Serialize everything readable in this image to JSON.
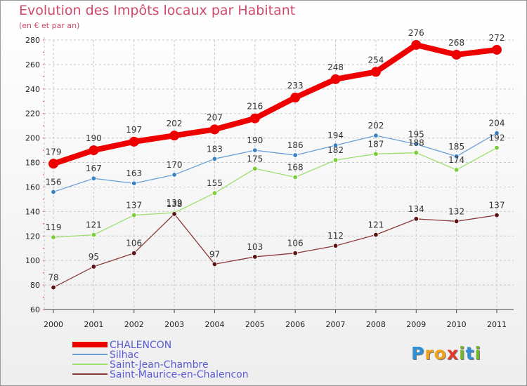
{
  "chart_data": {
    "type": "line",
    "title": "Evolution des Impôts locaux par Habitant",
    "subtitle": "(en € et par an)",
    "xlabel": "",
    "ylabel": "",
    "ylim": [
      60,
      280
    ],
    "y_ticks": [
      60,
      80,
      100,
      120,
      140,
      160,
      180,
      200,
      220,
      240,
      260,
      280
    ],
    "categories": [
      "2000",
      "2001",
      "2002",
      "2003",
      "2004",
      "2005",
      "2006",
      "2007",
      "2008",
      "2009",
      "2010",
      "2011"
    ],
    "legend_position": "bottom-left",
    "series": [
      {
        "name": "CHALENCON",
        "color": "#ee0000",
        "point_color": "#ee0000",
        "emphasis": "thick",
        "values": [
          179,
          190,
          197,
          202,
          207,
          216,
          233,
          248,
          254,
          276,
          268,
          272
        ]
      },
      {
        "name": "Silhac",
        "color": "#6a9fd8",
        "point_color": "#3b82c4",
        "emphasis": "thin",
        "values": [
          156,
          167,
          163,
          170,
          183,
          190,
          186,
          194,
          202,
          195,
          185,
          204
        ]
      },
      {
        "name": "Saint-Jean-Chambre",
        "color": "#9ede6e",
        "point_color": "#7ccc3a",
        "emphasis": "thin",
        "values": [
          119,
          121,
          137,
          139,
          155,
          175,
          168,
          182,
          187,
          188,
          174,
          192
        ]
      },
      {
        "name": "Saint-Maurice-en-Chalencon",
        "color": "#8c3a3a",
        "point_color": "#5a1414",
        "emphasis": "thin",
        "values": [
          78,
          95,
          106,
          138,
          97,
          103,
          106,
          112,
          121,
          134,
          132,
          137
        ]
      }
    ]
  },
  "logo": {
    "letters": [
      "P",
      "r",
      "o",
      "x",
      "i",
      "t",
      "i"
    ],
    "colors": [
      "#2f8fd8",
      "#f0a21b",
      "#f0a21b",
      "#e33a2b",
      "#77b82a",
      "#2f8fd8",
      "#77b82a"
    ]
  }
}
